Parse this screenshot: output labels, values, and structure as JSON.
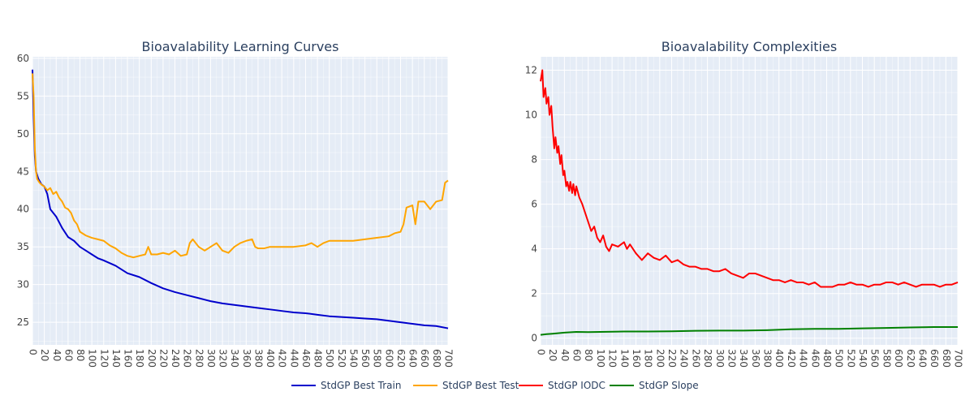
{
  "chart_data": [
    {
      "type": "line",
      "title": "Bioavalability Learning Curves",
      "xlabel": "",
      "ylabel": "",
      "xlim": [
        0,
        700
      ],
      "ylim": [
        22,
        60.2
      ],
      "x_ticks": [
        0,
        20,
        40,
        60,
        80,
        100,
        120,
        140,
        160,
        180,
        200,
        220,
        240,
        260,
        280,
        300,
        320,
        340,
        360,
        380,
        400,
        420,
        440,
        460,
        480,
        500,
        520,
        540,
        560,
        580,
        600,
        620,
        640,
        660,
        680,
        700
      ],
      "y_ticks": [
        25,
        30,
        35,
        40,
        45,
        50,
        55,
        60
      ],
      "grid": true,
      "series": [
        {
          "name": "StdGP Best Train",
          "color": "#0000cc",
          "points": [
            [
              0,
              58.5
            ],
            [
              2,
              52
            ],
            [
              4,
              47
            ],
            [
              6,
              45
            ],
            [
              10,
              44
            ],
            [
              15,
              43.3
            ],
            [
              20,
              43
            ],
            [
              25,
              42
            ],
            [
              30,
              40
            ],
            [
              40,
              39
            ],
            [
              50,
              37.5
            ],
            [
              60,
              36.3
            ],
            [
              70,
              35.8
            ],
            [
              80,
              35
            ],
            [
              90,
              34.5
            ],
            [
              100,
              34
            ],
            [
              110,
              33.5
            ],
            [
              120,
              33.2
            ],
            [
              140,
              32.5
            ],
            [
              160,
              31.5
            ],
            [
              180,
              31
            ],
            [
              200,
              30.2
            ],
            [
              220,
              29.5
            ],
            [
              240,
              29
            ],
            [
              260,
              28.6
            ],
            [
              280,
              28.2
            ],
            [
              300,
              27.8
            ],
            [
              320,
              27.5
            ],
            [
              340,
              27.3
            ],
            [
              360,
              27.1
            ],
            [
              380,
              26.9
            ],
            [
              400,
              26.7
            ],
            [
              420,
              26.5
            ],
            [
              440,
              26.3
            ],
            [
              460,
              26.2
            ],
            [
              480,
              26
            ],
            [
              500,
              25.8
            ],
            [
              520,
              25.7
            ],
            [
              540,
              25.6
            ],
            [
              560,
              25.5
            ],
            [
              580,
              25.4
            ],
            [
              600,
              25.2
            ],
            [
              620,
              25
            ],
            [
              640,
              24.8
            ],
            [
              660,
              24.6
            ],
            [
              680,
              24.5
            ],
            [
              700,
              24.2
            ]
          ]
        },
        {
          "name": "StdGP Best Test",
          "color": "#ffa500",
          "points": [
            [
              0,
              58
            ],
            [
              2,
              55
            ],
            [
              4,
              48
            ],
            [
              6,
              45
            ],
            [
              8,
              44
            ],
            [
              12,
              43.5
            ],
            [
              16,
              43.2
            ],
            [
              20,
              43
            ],
            [
              25,
              42.5
            ],
            [
              30,
              42.8
            ],
            [
              35,
              42
            ],
            [
              40,
              42.3
            ],
            [
              45,
              41.5
            ],
            [
              50,
              41
            ],
            [
              55,
              40.2
            ],
            [
              60,
              40
            ],
            [
              65,
              39.5
            ],
            [
              70,
              38.5
            ],
            [
              75,
              38
            ],
            [
              80,
              37
            ],
            [
              90,
              36.5
            ],
            [
              100,
              36.2
            ],
            [
              110,
              36
            ],
            [
              120,
              35.8
            ],
            [
              130,
              35.2
            ],
            [
              140,
              34.8
            ],
            [
              150,
              34.2
            ],
            [
              160,
              33.8
            ],
            [
              170,
              33.6
            ],
            [
              180,
              33.8
            ],
            [
              190,
              34
            ],
            [
              195,
              35
            ],
            [
              200,
              34
            ],
            [
              210,
              34
            ],
            [
              220,
              34.2
            ],
            [
              230,
              34
            ],
            [
              240,
              34.5
            ],
            [
              250,
              33.8
            ],
            [
              260,
              34
            ],
            [
              265,
              35.5
            ],
            [
              270,
              36
            ],
            [
              280,
              35
            ],
            [
              290,
              34.5
            ],
            [
              300,
              35
            ],
            [
              310,
              35.5
            ],
            [
              320,
              34.5
            ],
            [
              330,
              34.2
            ],
            [
              340,
              35
            ],
            [
              350,
              35.5
            ],
            [
              360,
              35.8
            ],
            [
              370,
              36
            ],
            [
              375,
              35
            ],
            [
              380,
              34.8
            ],
            [
              390,
              34.8
            ],
            [
              400,
              35
            ],
            [
              420,
              35
            ],
            [
              440,
              35
            ],
            [
              460,
              35.2
            ],
            [
              470,
              35.5
            ],
            [
              480,
              35
            ],
            [
              490,
              35.5
            ],
            [
              500,
              35.8
            ],
            [
              520,
              35.8
            ],
            [
              540,
              35.8
            ],
            [
              560,
              36
            ],
            [
              580,
              36.2
            ],
            [
              600,
              36.4
            ],
            [
              610,
              36.8
            ],
            [
              620,
              37
            ],
            [
              625,
              38
            ],
            [
              630,
              40.2
            ],
            [
              640,
              40.5
            ],
            [
              645,
              38
            ],
            [
              650,
              41
            ],
            [
              660,
              41
            ],
            [
              670,
              40
            ],
            [
              680,
              41
            ],
            [
              690,
              41.2
            ],
            [
              695,
              43.5
            ],
            [
              700,
              43.8
            ]
          ]
        }
      ]
    },
    {
      "type": "line",
      "title": "Bioavalability Complexities",
      "xlabel": "",
      "ylabel": "",
      "xlim": [
        0,
        700
      ],
      "ylim": [
        -0.3,
        12.6
      ],
      "x_ticks": [
        0,
        20,
        40,
        60,
        80,
        100,
        120,
        140,
        160,
        180,
        200,
        220,
        240,
        260,
        280,
        300,
        320,
        340,
        360,
        380,
        400,
        420,
        440,
        460,
        480,
        500,
        520,
        540,
        560,
        580,
        600,
        620,
        640,
        660,
        680,
        700
      ],
      "y_ticks": [
        0,
        2,
        4,
        6,
        8,
        10,
        12
      ],
      "grid": true,
      "series": [
        {
          "name": "StdGP IODC",
          "color": "#ff0000",
          "points": [
            [
              0,
              11.5
            ],
            [
              3,
              12
            ],
            [
              5,
              10.8
            ],
            [
              8,
              11.2
            ],
            [
              10,
              10.5
            ],
            [
              13,
              10.8
            ],
            [
              15,
              10
            ],
            [
              18,
              10.4
            ],
            [
              20,
              9.5
            ],
            [
              23,
              8.5
            ],
            [
              25,
              9
            ],
            [
              28,
              8.3
            ],
            [
              30,
              8.6
            ],
            [
              33,
              7.8
            ],
            [
              35,
              8.2
            ],
            [
              38,
              7.3
            ],
            [
              40,
              7.5
            ],
            [
              43,
              6.8
            ],
            [
              45,
              7
            ],
            [
              48,
              6.6
            ],
            [
              50,
              7
            ],
            [
              53,
              6.5
            ],
            [
              55,
              6.9
            ],
            [
              58,
              6.4
            ],
            [
              60,
              6.8
            ],
            [
              65,
              6.3
            ],
            [
              70,
              6
            ],
            [
              75,
              5.6
            ],
            [
              80,
              5.2
            ],
            [
              85,
              4.8
            ],
            [
              90,
              5
            ],
            [
              95,
              4.5
            ],
            [
              100,
              4.3
            ],
            [
              105,
              4.6
            ],
            [
              110,
              4.1
            ],
            [
              115,
              3.9
            ],
            [
              120,
              4.2
            ],
            [
              130,
              4.1
            ],
            [
              140,
              4.3
            ],
            [
              145,
              4
            ],
            [
              150,
              4.2
            ],
            [
              160,
              3.8
            ],
            [
              170,
              3.5
            ],
            [
              180,
              3.8
            ],
            [
              190,
              3.6
            ],
            [
              200,
              3.5
            ],
            [
              210,
              3.7
            ],
            [
              220,
              3.4
            ],
            [
              230,
              3.5
            ],
            [
              240,
              3.3
            ],
            [
              250,
              3.2
            ],
            [
              260,
              3.2
            ],
            [
              270,
              3.1
            ],
            [
              280,
              3.1
            ],
            [
              290,
              3
            ],
            [
              300,
              3
            ],
            [
              310,
              3.1
            ],
            [
              320,
              2.9
            ],
            [
              330,
              2.8
            ],
            [
              340,
              2.7
            ],
            [
              350,
              2.9
            ],
            [
              360,
              2.9
            ],
            [
              370,
              2.8
            ],
            [
              380,
              2.7
            ],
            [
              390,
              2.6
            ],
            [
              400,
              2.6
            ],
            [
              410,
              2.5
            ],
            [
              420,
              2.6
            ],
            [
              430,
              2.5
            ],
            [
              440,
              2.5
            ],
            [
              450,
              2.4
            ],
            [
              460,
              2.5
            ],
            [
              470,
              2.3
            ],
            [
              480,
              2.3
            ],
            [
              490,
              2.3
            ],
            [
              500,
              2.4
            ],
            [
              510,
              2.4
            ],
            [
              520,
              2.5
            ],
            [
              530,
              2.4
            ],
            [
              540,
              2.4
            ],
            [
              550,
              2.3
            ],
            [
              560,
              2.4
            ],
            [
              570,
              2.4
            ],
            [
              580,
              2.5
            ],
            [
              590,
              2.5
            ],
            [
              600,
              2.4
            ],
            [
              610,
              2.5
            ],
            [
              620,
              2.4
            ],
            [
              630,
              2.3
            ],
            [
              640,
              2.4
            ],
            [
              650,
              2.4
            ],
            [
              660,
              2.4
            ],
            [
              670,
              2.3
            ],
            [
              680,
              2.4
            ],
            [
              690,
              2.4
            ],
            [
              700,
              2.5
            ]
          ]
        },
        {
          "name": "StdGP Slope",
          "color": "#008000",
          "points": [
            [
              0,
              0.15
            ],
            [
              10,
              0.18
            ],
            [
              20,
              0.2
            ],
            [
              40,
              0.25
            ],
            [
              60,
              0.28
            ],
            [
              80,
              0.27
            ],
            [
              100,
              0.28
            ],
            [
              140,
              0.3
            ],
            [
              180,
              0.3
            ],
            [
              220,
              0.31
            ],
            [
              260,
              0.33
            ],
            [
              300,
              0.34
            ],
            [
              340,
              0.34
            ],
            [
              380,
              0.36
            ],
            [
              420,
              0.4
            ],
            [
              460,
              0.42
            ],
            [
              500,
              0.42
            ],
            [
              540,
              0.44
            ],
            [
              580,
              0.46
            ],
            [
              620,
              0.48
            ],
            [
              660,
              0.5
            ],
            [
              700,
              0.5
            ]
          ]
        }
      ]
    }
  ],
  "legend": {
    "placement": "bottom-center",
    "items": [
      {
        "name": "StdGP Best Train",
        "color": "#0000cc"
      },
      {
        "name": "StdGP Best Test",
        "color": "#ffa500"
      },
      {
        "name": "StdGP IODC",
        "color": "#ff0000"
      },
      {
        "name": "StdGP Slope",
        "color": "#008000"
      }
    ]
  },
  "colors": {
    "plot_background": "#e5ecf6",
    "grid": "#ffffff",
    "text": "#2a3f5f",
    "tick_text": "#444444"
  }
}
